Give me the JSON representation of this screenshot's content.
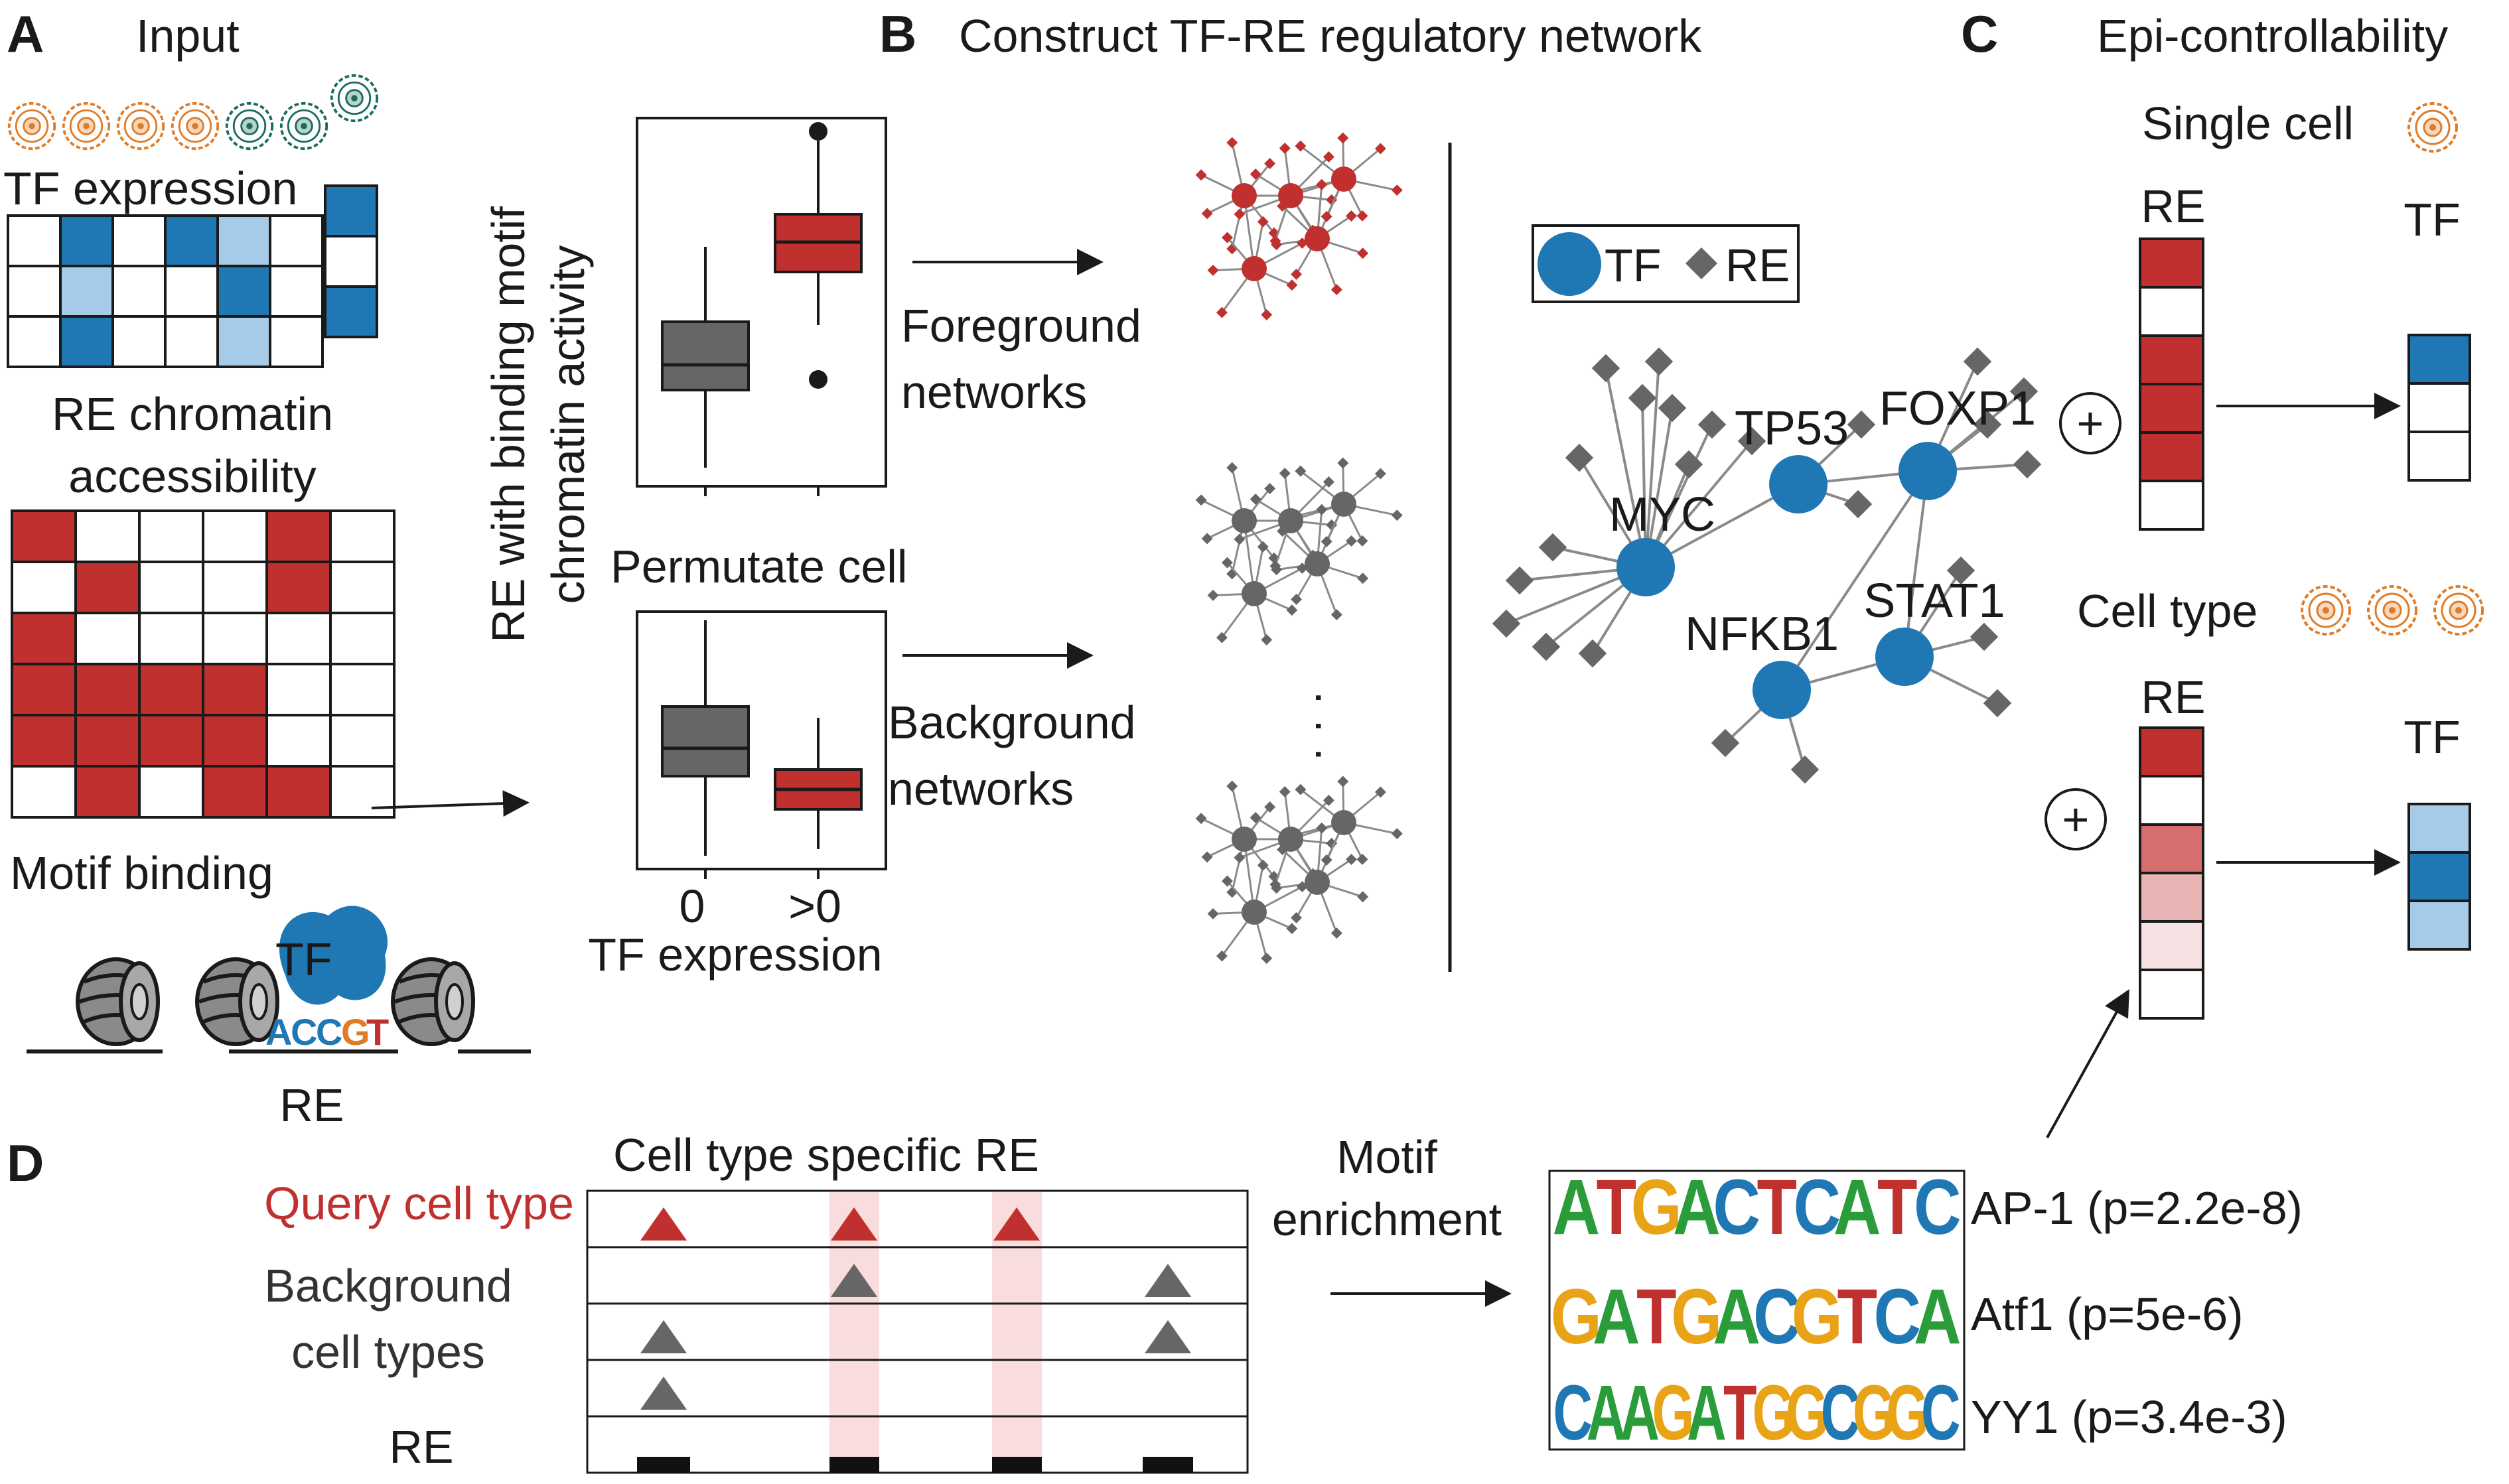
{
  "panels": {
    "a": {
      "letter": "A",
      "title": "Input",
      "tf_expression_label": "TF expression",
      "re_chromatin_label_line1": "RE chromatin",
      "re_chromatin_label_line2": "accessibility",
      "motif_binding_label": "Motif binding",
      "tf_label": "TF",
      "motif_sequence": [
        "A",
        "C",
        "C",
        "G",
        "T"
      ],
      "re_label": "RE",
      "tf_matrix": [
        [
          0,
          2,
          0,
          2,
          1,
          0
        ],
        [
          0,
          1,
          0,
          0,
          2,
          0
        ],
        [
          0,
          2,
          0,
          0,
          1,
          0
        ]
      ],
      "re_matrix": [
        [
          1,
          0,
          0,
          0,
          1,
          0
        ],
        [
          0,
          1,
          0,
          0,
          1,
          0
        ],
        [
          1,
          0,
          0,
          0,
          0,
          0
        ],
        [
          1,
          1,
          1,
          1,
          0,
          0
        ],
        [
          1,
          1,
          1,
          1,
          0,
          0
        ],
        [
          0,
          1,
          0,
          1,
          1,
          0
        ]
      ]
    },
    "b": {
      "letter": "B",
      "title": "Construct TF-RE regulatory network",
      "y_axis_line1": "RE with binding motif",
      "y_axis_line2": "chromatin activity",
      "permutate_label": "Permutate cell",
      "x_ticks": [
        "0",
        ">0"
      ],
      "x_axis_label": "TF expression",
      "foreground_line1": "Foreground",
      "foreground_line2": "networks",
      "background_line1": "Background",
      "background_line2": "networks",
      "legend_tf": "TF",
      "legend_re": "RE",
      "tf_nodes": [
        "TP53",
        "FOXP1",
        "MYC",
        "NFKB1",
        "STAT1"
      ],
      "ellipsis": "· · ·"
    },
    "c": {
      "letter": "C",
      "title": "Epi-controllability",
      "single_cell_label": "Single cell",
      "cell_type_label": "Cell type",
      "re_label": "RE",
      "tf_label": "TF",
      "plus_symbol": "+",
      "single_cell_re": [
        "#c0302f",
        "#ffffff",
        "#c0302f",
        "#c0302f",
        "#c0302f",
        "#ffffff"
      ],
      "single_cell_tf": [
        "#1f77b4",
        "#ffffff",
        "#ffffff"
      ],
      "cell_type_re": [
        "#c0302f",
        "#ffffff",
        "#d66e6e",
        "#e9b4b4",
        "#f6e2e2",
        "#ffffff"
      ],
      "cell_type_tf": [
        "#a6cbe8",
        "#1f77b4",
        "#a6cbe8"
      ]
    },
    "d": {
      "letter": "D",
      "track_title": "Cell type specific RE",
      "query_label": "Query cell type",
      "background_line1": "Background",
      "background_line2": "cell types",
      "re_label": "RE",
      "motif_label_line1": "Motif",
      "motif_label_line2": "enrichment",
      "motifs": [
        {
          "sequence": "ATGACTCATC",
          "result": "AP-1 (p=2.2e-8)"
        },
        {
          "sequence": "GATGACGTCA",
          "result": "Atf1 (p=5e-6)"
        },
        {
          "sequence": "CAAGATGGCGGC",
          "result": "YY1 (p=3.4e-3)"
        }
      ]
    }
  },
  "colors": {
    "red": "#c0302f",
    "blue": "#1f77b4",
    "light_blue": "#a6cbe8",
    "gray": "#666666",
    "orange": "#e07b27",
    "teal": "#1a6b5c",
    "pink_band": "#f9dcdc"
  }
}
